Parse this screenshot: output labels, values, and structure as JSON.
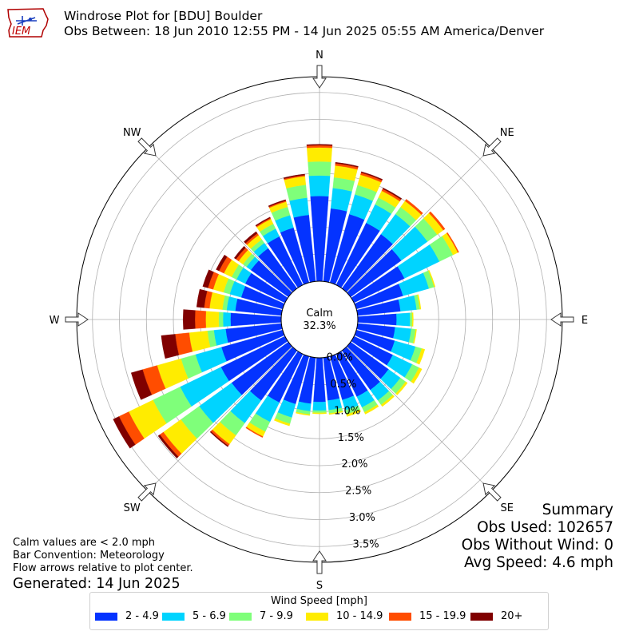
{
  "logo": {
    "text": "IEM"
  },
  "header": {
    "title": "Windrose Plot for [BDU] Boulder",
    "subtitle": "Obs Between: 18 Jun 2010 12:55 PM - 14 Jun 2025 05:55 AM America/Denver"
  },
  "calm": {
    "label": "Calm",
    "value": "32.3%"
  },
  "summary": {
    "heading": "Summary",
    "obs_used": "Obs Used: 102657",
    "obs_without_wind": "Obs Without Wind: 0",
    "avg_speed": "Avg Speed: 4.6 mph"
  },
  "notes": {
    "calm_def": "Calm values are < 2.0 mph",
    "bar_convention": "Bar Convention: Meteorology",
    "flow_arrows": "Flow arrows relative to plot center.",
    "generated": "Generated: 14 Jun 2025"
  },
  "chart_data": {
    "type": "windrose",
    "title": "Windrose Plot for [BDU] Boulder",
    "directions": [
      0,
      10,
      20,
      30,
      40,
      50,
      60,
      70,
      80,
      90,
      100,
      110,
      120,
      130,
      140,
      150,
      160,
      170,
      180,
      190,
      200,
      210,
      220,
      230,
      240,
      250,
      260,
      270,
      280,
      290,
      300,
      310,
      320,
      330,
      340,
      350
    ],
    "compass_labels": [
      "N",
      "NE",
      "E",
      "SE",
      "S",
      "SW",
      "W",
      "NW"
    ],
    "radial_ticks": [
      "0.0%",
      "0.5%",
      "1.0%",
      "1.5%",
      "2.0%",
      "2.5%",
      "3.0%",
      "3.5%"
    ],
    "rlim": [
      0,
      4.0
    ],
    "unit": "%",
    "legend_title": "Wind Speed [mph]",
    "legend_placement": "bottom-center",
    "grid": true,
    "series": [
      {
        "name": "2 - 4.9",
        "color": "#0433ff",
        "values": [
          1.58,
          1.36,
          1.32,
          1.28,
          1.24,
          1.16,
          1.04,
          0.9,
          0.8,
          0.72,
          0.7,
          0.74,
          0.8,
          0.87,
          0.9,
          0.88,
          0.84,
          0.8,
          0.82,
          0.86,
          0.92,
          1.0,
          1.14,
          1.3,
          1.32,
          1.18,
          1.04,
          0.94,
          0.86,
          0.8,
          0.82,
          0.86,
          0.92,
          1.0,
          1.06,
          1.24
        ]
      },
      {
        "name": "5 - 6.9",
        "color": "#00d4ff",
        "values": [
          0.38,
          0.38,
          0.38,
          0.38,
          0.46,
          0.6,
          0.72,
          0.5,
          0.3,
          0.25,
          0.3,
          0.4,
          0.4,
          0.27,
          0.24,
          0.22,
          0.2,
          0.18,
          0.16,
          0.14,
          0.26,
          0.4,
          0.52,
          0.74,
          0.84,
          0.5,
          0.22,
          0.14,
          0.16,
          0.22,
          0.18,
          0.1,
          0.12,
          0.16,
          0.24,
          0.32
        ]
      },
      {
        "name": "7 - 9.9",
        "color": "#7fff7a",
        "values": [
          0.26,
          0.2,
          0.18,
          0.14,
          0.16,
          0.22,
          0.28,
          0.1,
          0.06,
          0.04,
          0.08,
          0.12,
          0.14,
          0.12,
          0.1,
          0.1,
          0.08,
          0.06,
          0.04,
          0.06,
          0.12,
          0.2,
          0.28,
          0.42,
          0.56,
          0.28,
          0.12,
          0.08,
          0.08,
          0.12,
          0.1,
          0.08,
          0.08,
          0.1,
          0.16,
          0.24
        ]
      },
      {
        "name": "10 - 14.9",
        "color": "#ffec00",
        "values": [
          0.26,
          0.22,
          0.2,
          0.14,
          0.14,
          0.14,
          0.1,
          0.02,
          0.02,
          0.02,
          0.02,
          0.06,
          0.06,
          0.04,
          0.04,
          0.04,
          0.04,
          0.02,
          0.02,
          0.02,
          0.04,
          0.1,
          0.2,
          0.4,
          0.5,
          0.46,
          0.34,
          0.24,
          0.24,
          0.2,
          0.16,
          0.1,
          0.1,
          0.1,
          0.1,
          0.16
        ]
      },
      {
        "name": "15 - 19.9",
        "color": "#ff4d00",
        "values": [
          0.04,
          0.04,
          0.04,
          0.04,
          0.04,
          0.04,
          0.02,
          0.0,
          0.0,
          0.0,
          0.0,
          0.0,
          0.0,
          0.0,
          0.0,
          0.0,
          0.0,
          0.0,
          0.0,
          0.0,
          0.0,
          0.02,
          0.04,
          0.08,
          0.2,
          0.28,
          0.26,
          0.2,
          0.1,
          0.1,
          0.1,
          0.06,
          0.04,
          0.02,
          0.02,
          0.02
        ]
      },
      {
        "name": "20+",
        "color": "#800000",
        "values": [
          0.02,
          0.02,
          0.02,
          0.02,
          0.0,
          0.0,
          0.0,
          0.0,
          0.0,
          0.0,
          0.0,
          0.0,
          0.0,
          0.0,
          0.0,
          0.0,
          0.0,
          0.0,
          0.0,
          0.0,
          0.0,
          0.0,
          0.02,
          0.04,
          0.12,
          0.22,
          0.26,
          0.22,
          0.14,
          0.1,
          0.06,
          0.04,
          0.04,
          0.02,
          0.02,
          0.02
        ]
      }
    ]
  }
}
